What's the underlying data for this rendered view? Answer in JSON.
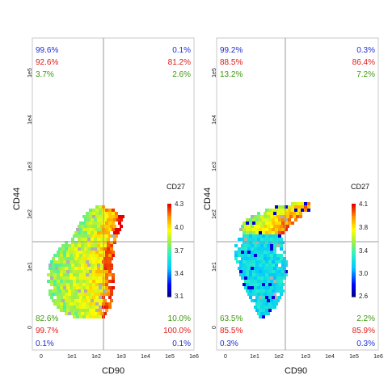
{
  "colors": {
    "blue": "#1f2fd1",
    "red": "#e01b1b",
    "green": "#3f9a10",
    "frame": "#c8c8c8",
    "gate": "#9a9a9a"
  },
  "panels": [
    {
      "xlabel": "CD90",
      "ylabel": "CD44",
      "x_ticks": [
        "0",
        "1e1",
        "1e2",
        "1e3",
        "1e4",
        "1e5",
        "1e6"
      ],
      "y_ticks": [
        "0",
        "1e1",
        "1e2",
        "1e3",
        "1e4",
        "1e5"
      ],
      "legend": {
        "title": "CD27",
        "ticks": [
          "4.3",
          "4.0",
          "3.7",
          "3.4",
          "3.1"
        ]
      },
      "quadrants": {
        "top_left": [
          "99.6%",
          "92.6%",
          "3.7%"
        ],
        "top_right": [
          "0.1%",
          "81.2%",
          "2.6%"
        ],
        "bottom_left": [
          "82.6%",
          "99.7%",
          "0.1%"
        ],
        "bottom_right": [
          "10.0%",
          "100.0%",
          "0.1%"
        ]
      }
    },
    {
      "xlabel": "CD90",
      "ylabel": "CD44",
      "x_ticks": [
        "0",
        "1e1",
        "1e2",
        "1e3",
        "1e4",
        "1e5",
        "1e6"
      ],
      "y_ticks": [
        "0",
        "1e1",
        "1e2",
        "1e3",
        "1e4",
        "1e5"
      ],
      "legend": {
        "title": "CD27",
        "ticks": [
          "4.1",
          "3.8",
          "3.4",
          "3.0",
          "2.6"
        ]
      },
      "quadrants": {
        "top_left": [
          "99.2%",
          "88.5%",
          "13.2%"
        ],
        "top_right": [
          "0.3%",
          "86.4%",
          "7.2%"
        ],
        "bottom_left": [
          "63.5%",
          "85.5%",
          "0.3%"
        ],
        "bottom_right": [
          "2.2%",
          "85.9%",
          "0.3%"
        ]
      }
    }
  ],
  "chart_data": [
    {
      "type": "heatmap",
      "xlabel": "CD90",
      "ylabel": "CD44",
      "x_scale": "log",
      "y_scale": "log",
      "xlim": [
        0,
        1000000
      ],
      "ylim": [
        0,
        100000
      ],
      "x_gate": 150,
      "y_gate": 40,
      "colorbar_title": "CD27",
      "colorbar_range": [
        3.1,
        4.3
      ],
      "quadrant_percentages": {
        "top_left": [
          "99.6%",
          "92.6%",
          "3.7%"
        ],
        "top_right": [
          "0.1%",
          "81.2%",
          "2.6%"
        ],
        "bottom_left": [
          "82.6%",
          "99.7%",
          "0.1%"
        ],
        "bottom_right": [
          "10.0%",
          "100.0%",
          "0.1%"
        ]
      }
    },
    {
      "type": "heatmap",
      "xlabel": "CD90",
      "ylabel": "CD44",
      "x_scale": "log",
      "y_scale": "log",
      "xlim": [
        0,
        1000000
      ],
      "ylim": [
        0,
        100000
      ],
      "x_gate": 150,
      "y_gate": 40,
      "colorbar_title": "CD27",
      "colorbar_range": [
        2.6,
        4.1
      ],
      "quadrant_percentages": {
        "top_left": [
          "99.2%",
          "88.5%",
          "13.2%"
        ],
        "top_right": [
          "0.3%",
          "86.4%",
          "7.2%"
        ],
        "bottom_left": [
          "63.5%",
          "85.5%",
          "0.3%"
        ],
        "bottom_right": [
          "2.2%",
          "85.9%",
          "0.3%"
        ]
      }
    }
  ]
}
